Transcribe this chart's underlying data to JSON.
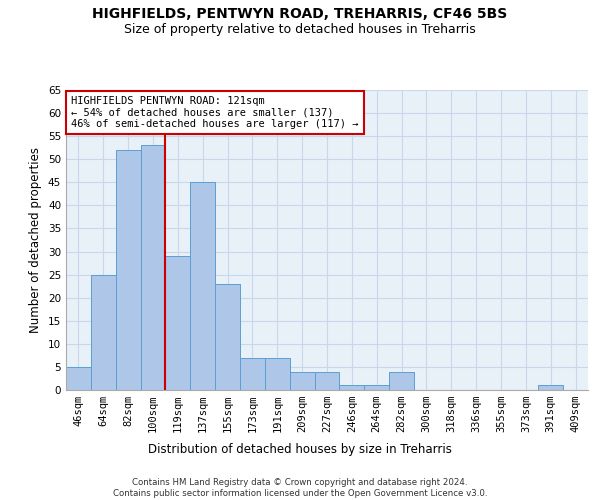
{
  "title1": "HIGHFIELDS, PENTWYN ROAD, TREHARRIS, CF46 5BS",
  "title2": "Size of property relative to detached houses in Treharris",
  "xlabel": "Distribution of detached houses by size in Treharris",
  "ylabel": "Number of detached properties",
  "footnote": "Contains HM Land Registry data © Crown copyright and database right 2024.\nContains public sector information licensed under the Open Government Licence v3.0.",
  "categories": [
    "46sqm",
    "64sqm",
    "82sqm",
    "100sqm",
    "119sqm",
    "137sqm",
    "155sqm",
    "173sqm",
    "191sqm",
    "209sqm",
    "227sqm",
    "246sqm",
    "264sqm",
    "282sqm",
    "300sqm",
    "318sqm",
    "336sqm",
    "355sqm",
    "373sqm",
    "391sqm",
    "409sqm"
  ],
  "values": [
    5,
    25,
    52,
    53,
    29,
    45,
    23,
    7,
    7,
    4,
    4,
    1,
    1,
    4,
    0,
    0,
    0,
    0,
    0,
    1,
    0
  ],
  "bar_color": "#aec6e8",
  "bar_edge_color": "#5a9fd4",
  "marker_label_line1": "HIGHFIELDS PENTWYN ROAD: 121sqm",
  "marker_label_line2": "← 54% of detached houses are smaller (137)",
  "marker_label_line3": "46% of semi-detached houses are larger (117) →",
  "annotation_box_color": "#ffffff",
  "annotation_border_color": "#cc0000",
  "vline_color": "#cc0000",
  "vline_x": 3.5,
  "ylim": [
    0,
    65
  ],
  "yticks": [
    0,
    5,
    10,
    15,
    20,
    25,
    30,
    35,
    40,
    45,
    50,
    55,
    60,
    65
  ],
  "grid_color": "#c8d8ea",
  "background_color": "#e8f0f8",
  "title1_fontsize": 10,
  "title2_fontsize": 9,
  "axis_label_fontsize": 8.5,
  "tick_fontsize": 7.5,
  "annotation_fontsize": 7.5
}
